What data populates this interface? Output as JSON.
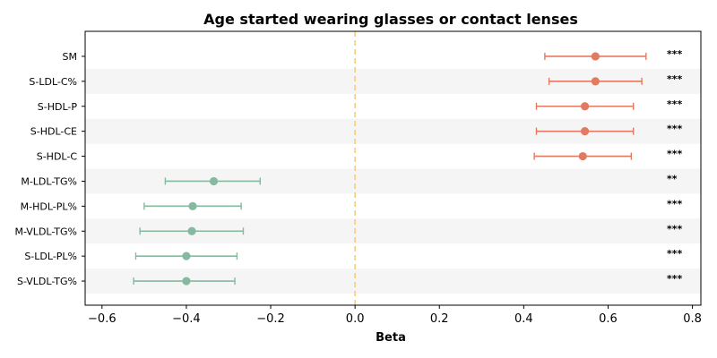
{
  "chart_data": {
    "type": "scatter",
    "subtype": "forest-plot",
    "title": "Age started wearing glasses or contact lenses",
    "xlabel": "Beta",
    "ylabel": "",
    "xlim": [
      -0.64,
      0.82
    ],
    "xticks": [
      -0.6,
      -0.4,
      -0.2,
      0.0,
      0.2,
      0.4,
      0.6,
      0.8
    ],
    "xtick_labels": [
      "−0.6",
      "−0.4",
      "−0.2",
      "0.0",
      "0.2",
      "0.4",
      "0.6",
      "0.8"
    ],
    "reference_line": {
      "x": 0.0,
      "color": "#f5c77e",
      "style": "dashed"
    },
    "colors": {
      "positive": "#e07b62",
      "negative": "#86b9a0",
      "band": "#f5f5f5"
    },
    "grid": false,
    "alternating_row_bands": true,
    "categories": [
      "SM",
      "S-LDL-C%",
      "S-HDL-P",
      "S-HDL-CE",
      "S-HDL-C",
      "M-LDL-TG%",
      "M-HDL-PL%",
      "M-VLDL-TG%",
      "S-LDL-PL%",
      "S-VLDL-TG%"
    ],
    "beta": [
      0.57,
      0.57,
      0.545,
      0.545,
      0.54,
      -0.335,
      -0.385,
      -0.387,
      -0.4,
      -0.4
    ],
    "ci_low": [
      0.45,
      0.46,
      0.43,
      0.43,
      0.425,
      -0.45,
      -0.5,
      -0.51,
      -0.52,
      -0.525
    ],
    "ci_high": [
      0.69,
      0.68,
      0.66,
      0.66,
      0.655,
      -0.225,
      -0.27,
      -0.265,
      -0.28,
      -0.285
    ],
    "significance": [
      "***",
      "***",
      "***",
      "***",
      "***",
      "**",
      "***",
      "***",
      "***",
      "***"
    ]
  }
}
